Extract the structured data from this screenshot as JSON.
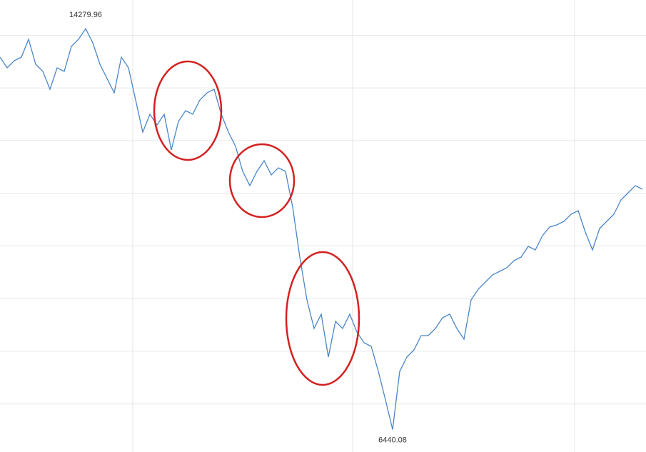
{
  "chart_data": {
    "type": "line",
    "color": "#4a86c8",
    "grid": true,
    "ylim": [
      6000,
      14840
    ],
    "yticks": [
      14150,
      13120,
      12090,
      11060,
      10030,
      9000,
      7970,
      6940
    ],
    "values": [
      13723,
      13513,
      13653,
      13723,
      14072,
      13583,
      13444,
      13094,
      13513,
      13444,
      13932,
      14072,
      14279.96,
      14002,
      13583,
      13304,
      13025,
      13723,
      13513,
      12885,
      12255,
      12606,
      12396,
      12606,
      11907,
      12466,
      12675,
      12606,
      12885,
      13025,
      13094,
      12606,
      12257,
      11977,
      11488,
      11209,
      11488,
      11698,
      11419,
      11558,
      11488,
      10790,
      9813,
      8975,
      8416,
      8695,
      7857,
      8556,
      8416,
      8695,
      8346,
      8137,
      8067,
      7578,
      7020,
      6440.08,
      7578,
      7857,
      7997,
      8277,
      8277,
      8416,
      8626,
      8695,
      8416,
      8207,
      8975,
      9184,
      9324,
      9464,
      9533,
      9603,
      9743,
      9813,
      10022,
      9952,
      10232,
      10399,
      10441,
      10511,
      10650,
      10720,
      10301,
      9952,
      10371,
      10511,
      10650,
      10930,
      11070,
      11209,
      11139
    ]
  }
}
